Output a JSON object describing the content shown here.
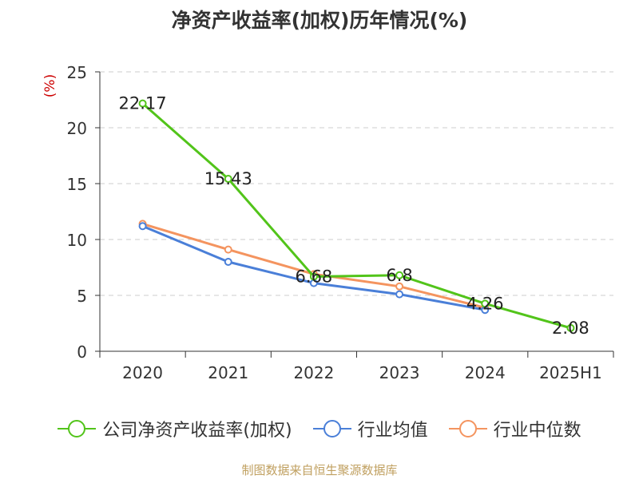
{
  "title": "净资产收益率(加权)历年情况(%)",
  "source": "制图数据来自恒生聚源数据库",
  "chart_data": {
    "type": "line",
    "title": "净资产收益率(加权)历年情况(%)",
    "ylabel": "(%)",
    "xlabel": "",
    "ylim": [
      0,
      25
    ],
    "yticks": [
      0,
      5,
      10,
      15,
      20,
      25
    ],
    "grid": true,
    "legend_position": "bottom",
    "categories": [
      "2020",
      "2021",
      "2022",
      "2023",
      "2024",
      "2025H1"
    ],
    "series": [
      {
        "name": "公司净资产收益率(加权)",
        "color": "#52c41a",
        "values": [
          22.17,
          15.43,
          6.68,
          6.8,
          4.26,
          2.08
        ],
        "data_labels": [
          "22.17",
          "15.43",
          "6.68",
          "6.8",
          "4.26",
          "2.08"
        ]
      },
      {
        "name": "行业均值",
        "color": "#4a7fd8",
        "values": [
          11.2,
          8.0,
          6.1,
          5.1,
          3.7,
          null
        ]
      },
      {
        "name": "行业中位数",
        "color": "#f4945f",
        "values": [
          11.4,
          9.1,
          6.9,
          5.8,
          3.9,
          null
        ]
      }
    ]
  }
}
